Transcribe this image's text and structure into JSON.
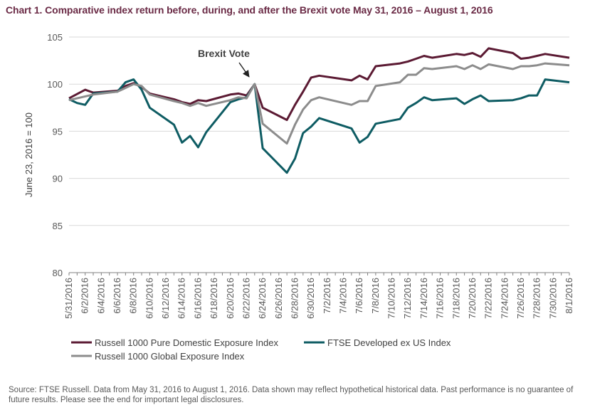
{
  "title": "Chart 1. Comparative index return before, during, and after the Brexit vote May 31, 2016 – August 1, 2016",
  "source": "Source: FTSE Russell. Data from May 31, 2016 to August 1, 2016. Data shown may reflect hypothetical historical data. Past performance is no guarantee of future results. Please see the end for important legal disclosures.",
  "chart_data": {
    "type": "line",
    "ylabel": "June 23, 2016 = 100",
    "ylim": [
      80,
      105
    ],
    "yticks": [
      80,
      85,
      90,
      95,
      100,
      105
    ],
    "xlim": [
      0,
      62
    ],
    "x_tick_labels": [
      "5/31/2016",
      "6/2/2016",
      "6/4/2016",
      "6/6/2016",
      "6/8/2016",
      "6/10/2016",
      "6/12/2016",
      "6/14/2016",
      "6/16/2016",
      "6/18/2016",
      "6/20/2016",
      "6/22/2016",
      "6/24/2016",
      "6/26/2016",
      "6/28/2016",
      "6/30/2016",
      "7/2/2016",
      "7/4/2016",
      "7/6/2016",
      "7/8/2016",
      "7/10/2016",
      "7/12/2016",
      "7/14/2016",
      "7/16/2016",
      "7/18/2016",
      "7/20/2016",
      "7/22/2016",
      "7/24/2016",
      "7/26/2016",
      "7/28/2016",
      "7/30/2016",
      "8/1/2016"
    ],
    "annotation": "Brexit Vote",
    "legend_position": "bottom",
    "grid": "horizontal",
    "series": [
      {
        "name": "Russell 1000 Pure Domestic Exposure Index",
        "color": "#5b1a33",
        "x": [
          "5/31/2016",
          "6/2/2016",
          "6/3/2016",
          "6/6/2016",
          "6/7/2016",
          "6/8/2016",
          "6/9/2016",
          "6/10/2016",
          "6/13/2016",
          "6/14/2016",
          "6/15/2016",
          "6/16/2016",
          "6/17/2016",
          "6/20/2016",
          "6/21/2016",
          "6/22/2016",
          "6/23/2016",
          "6/24/2016",
          "6/27/2016",
          "6/28/2016",
          "6/29/2016",
          "6/30/2016",
          "7/1/2016",
          "7/5/2016",
          "7/6/2016",
          "7/7/2016",
          "7/8/2016",
          "7/11/2016",
          "7/12/2016",
          "7/13/2016",
          "7/14/2016",
          "7/15/2016",
          "7/18/2016",
          "7/19/2016",
          "7/20/2016",
          "7/21/2016",
          "7/22/2016",
          "7/25/2016",
          "7/26/2016",
          "7/27/2016",
          "7/28/2016",
          "7/29/2016",
          "8/1/2016"
        ],
        "y": [
          98.5,
          99.4,
          99.1,
          99.3,
          99.8,
          100.1,
          99.7,
          99.0,
          98.4,
          98.1,
          97.9,
          98.3,
          98.2,
          98.9,
          99.0,
          98.8,
          100.0,
          97.5,
          96.2,
          97.8,
          99.2,
          100.7,
          100.9,
          100.4,
          100.9,
          100.5,
          101.9,
          102.2,
          102.4,
          102.7,
          103.0,
          102.8,
          103.2,
          103.1,
          103.3,
          102.9,
          103.8,
          103.3,
          102.7,
          102.8,
          103.0,
          103.2,
          102.8
        ]
      },
      {
        "name": "FTSE Developed ex US Index",
        "color": "#0e5c63",
        "x": [
          "5/31/2016",
          "6/1/2016",
          "6/2/2016",
          "6/3/2016",
          "6/6/2016",
          "6/7/2016",
          "6/8/2016",
          "6/9/2016",
          "6/10/2016",
          "6/13/2016",
          "6/14/2016",
          "6/15/2016",
          "6/16/2016",
          "6/17/2016",
          "6/20/2016",
          "6/21/2016",
          "6/22/2016",
          "6/23/2016",
          "6/24/2016",
          "6/27/2016",
          "6/28/2016",
          "6/29/2016",
          "6/30/2016",
          "7/1/2016",
          "7/5/2016",
          "7/6/2016",
          "7/7/2016",
          "7/8/2016",
          "7/11/2016",
          "7/12/2016",
          "7/13/2016",
          "7/14/2016",
          "7/15/2016",
          "7/18/2016",
          "7/19/2016",
          "7/20/2016",
          "7/21/2016",
          "7/22/2016",
          "7/25/2016",
          "7/26/2016",
          "7/27/2016",
          "7/28/2016",
          "7/29/2016",
          "8/1/2016"
        ],
        "y": [
          98.4,
          98.0,
          97.8,
          99.0,
          99.2,
          100.2,
          100.5,
          99.4,
          97.5,
          95.7,
          93.8,
          94.5,
          93.3,
          94.9,
          98.1,
          98.4,
          98.6,
          100.0,
          93.2,
          90.6,
          92.1,
          94.8,
          95.5,
          96.4,
          95.3,
          93.8,
          94.4,
          95.8,
          96.3,
          97.5,
          98.0,
          98.6,
          98.3,
          98.5,
          97.9,
          98.4,
          98.8,
          98.2,
          98.3,
          98.5,
          98.8,
          98.8,
          100.5,
          100.2
        ]
      },
      {
        "name": "Russell 1000 Global Exposure Index",
        "color": "#8c8c8c",
        "x": [
          "5/31/2016",
          "6/2/2016",
          "6/3/2016",
          "6/6/2016",
          "6/7/2016",
          "6/8/2016",
          "6/9/2016",
          "6/10/2016",
          "6/13/2016",
          "6/14/2016",
          "6/15/2016",
          "6/16/2016",
          "6/17/2016",
          "6/20/2016",
          "6/21/2016",
          "6/22/2016",
          "6/23/2016",
          "6/24/2016",
          "6/27/2016",
          "6/28/2016",
          "6/29/2016",
          "6/30/2016",
          "7/1/2016",
          "7/5/2016",
          "7/6/2016",
          "7/7/2016",
          "7/8/2016",
          "7/11/2016",
          "7/12/2016",
          "7/13/2016",
          "7/14/2016",
          "7/15/2016",
          "7/18/2016",
          "7/19/2016",
          "7/20/2016",
          "7/21/2016",
          "7/22/2016",
          "7/25/2016",
          "7/26/2016",
          "7/27/2016",
          "7/28/2016",
          "7/29/2016",
          "8/1/2016"
        ],
        "y": [
          98.3,
          98.7,
          98.9,
          99.2,
          99.6,
          100.0,
          99.8,
          98.9,
          98.2,
          98.0,
          97.7,
          98.0,
          97.7,
          98.3,
          98.6,
          98.5,
          100.0,
          95.8,
          93.7,
          95.7,
          97.3,
          98.3,
          98.6,
          97.8,
          98.2,
          98.2,
          99.8,
          100.2,
          101.0,
          101.0,
          101.7,
          101.6,
          101.9,
          101.6,
          102.0,
          101.6,
          102.1,
          101.6,
          101.9,
          101.9,
          102.0,
          102.2,
          102.0
        ]
      }
    ]
  }
}
